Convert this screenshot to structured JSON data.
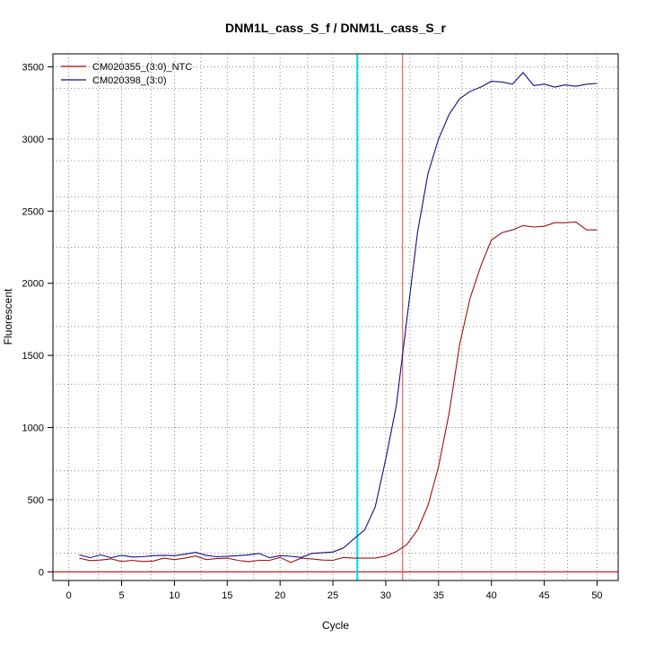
{
  "chart_data": {
    "type": "line",
    "title": "DNM1L_cass_S_f / DNM1L_cass_S_r",
    "xlabel": "Cycle",
    "ylabel": "Fluorescent",
    "xlim": [
      -1.5,
      52
    ],
    "ylim": [
      -60,
      3590
    ],
    "x_ticks": [
      0,
      5,
      10,
      15,
      20,
      25,
      30,
      35,
      40,
      45,
      50
    ],
    "y_ticks": [
      0,
      500,
      1000,
      1500,
      2000,
      2500,
      3000,
      3500
    ],
    "x_ticks_minor": [
      2.8,
      7.8,
      12.5,
      17.5,
      22.6,
      27.4,
      32.3,
      37.2,
      42.3,
      47.2
    ],
    "y_ticks_minor": [
      130,
      300,
      700,
      1300,
      1700,
      2250,
      2600,
      2850,
      3350
    ],
    "grid": true,
    "legend_position": "top-left",
    "threshold": {
      "y": 0,
      "color": "#cc2222"
    },
    "cq_lines": [
      {
        "x": 27.3,
        "color": "#00e5ee"
      },
      {
        "x": 31.6,
        "color": "#dd4444"
      }
    ],
    "x": [
      1,
      2,
      3,
      4,
      5,
      6,
      7,
      8,
      9,
      10,
      11,
      12,
      13,
      14,
      15,
      16,
      17,
      18,
      19,
      20,
      21,
      22,
      23,
      24,
      25,
      26,
      27,
      28,
      29,
      30,
      31,
      32,
      33,
      34,
      35,
      36,
      37,
      38,
      39,
      40,
      41,
      42,
      43,
      44,
      45,
      46,
      47,
      48,
      49,
      50
    ],
    "series": [
      {
        "name": "CM020355_(3:0)_NTC",
        "color": "#a01010",
        "values": [
          95,
          78,
          82,
          90,
          72,
          80,
          72,
          75,
          95,
          85,
          95,
          110,
          85,
          92,
          95,
          80,
          70,
          80,
          80,
          100,
          65,
          95,
          90,
          82,
          80,
          100,
          95,
          95,
          95,
          110,
          140,
          190,
          290,
          460,
          730,
          1100,
          1580,
          1900,
          2120,
          2300,
          2350,
          2370,
          2400,
          2390,
          2395,
          2420,
          2420,
          2425,
          2370,
          2370
        ]
      },
      {
        "name": "CM020398_(3:0)",
        "color": "#101080",
        "values": [
          118,
          98,
          118,
          98,
          115,
          103,
          105,
          112,
          115,
          112,
          122,
          135,
          115,
          105,
          108,
          112,
          118,
          128,
          98,
          112,
          108,
          100,
          128,
          132,
          138,
          165,
          230,
          290,
          450,
          780,
          1150,
          1750,
          2350,
          2760,
          3000,
          3170,
          3280,
          3330,
          3360,
          3400,
          3395,
          3380,
          3460,
          3370,
          3380,
          3360,
          3375,
          3365,
          3380,
          3385
        ]
      }
    ]
  }
}
